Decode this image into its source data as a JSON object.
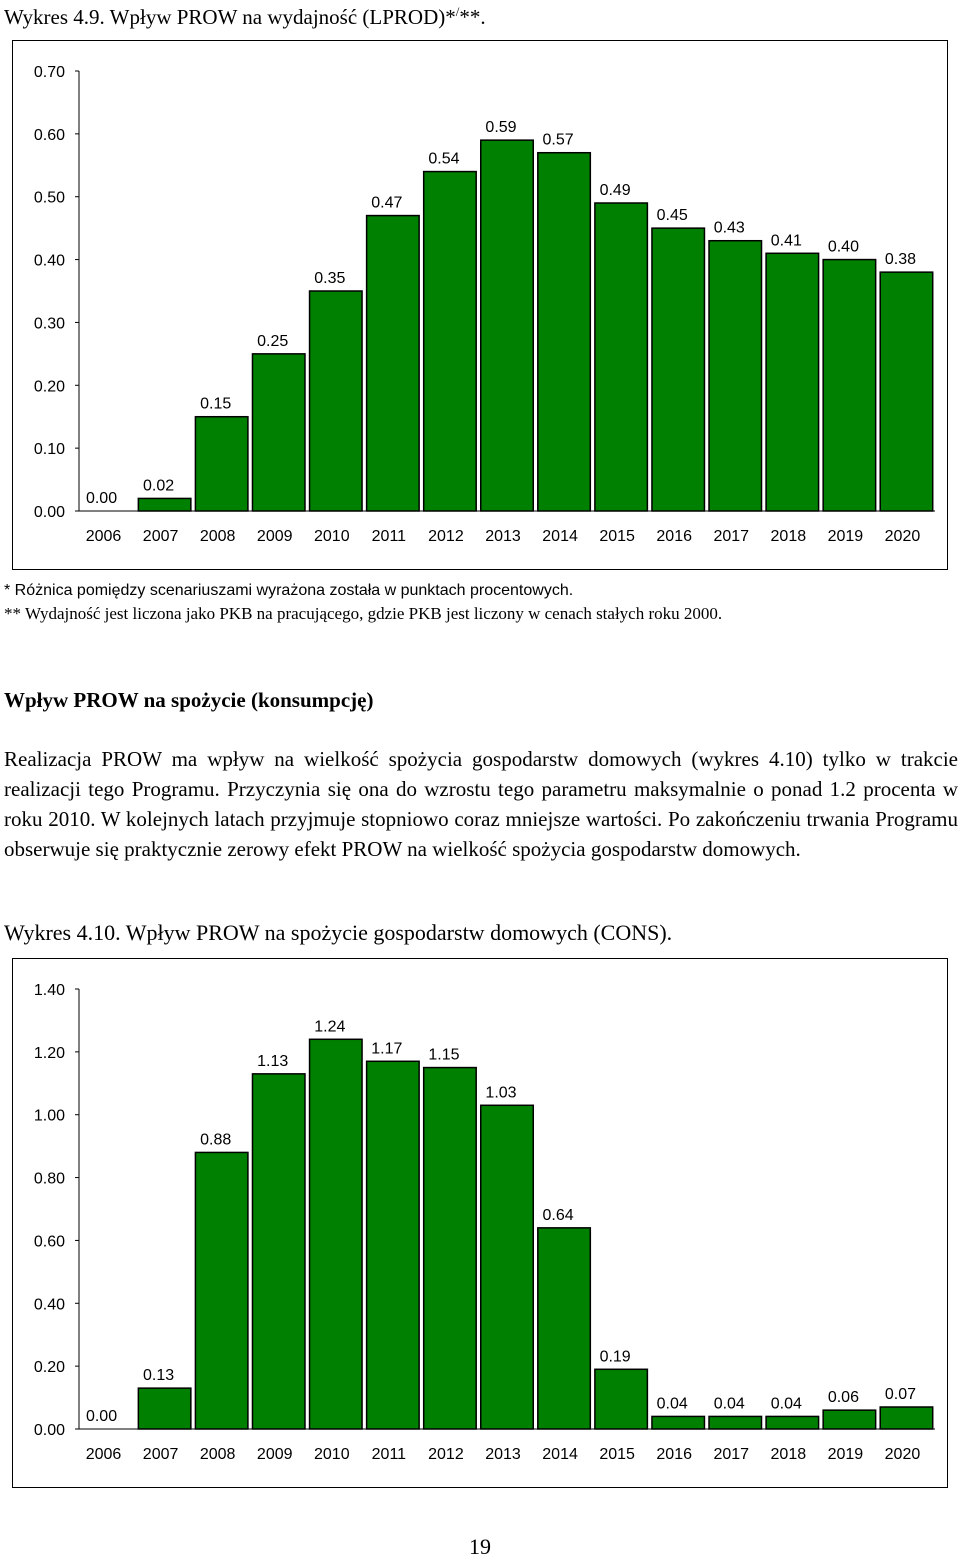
{
  "figure1": {
    "caption": "Wykres 4.9. Wpływ PROW na wydajność (LPROD)*",
    "caption_sup": "/",
    "caption_end": "**."
  },
  "chart_data": [
    {
      "type": "bar",
      "categories": [
        "2006",
        "2007",
        "2008",
        "2009",
        "2010",
        "2011",
        "2012",
        "2013",
        "2014",
        "2015",
        "2016",
        "2017",
        "2018",
        "2019",
        "2020"
      ],
      "values": [
        0.0,
        0.02,
        0.15,
        0.25,
        0.35,
        0.47,
        0.54,
        0.59,
        0.57,
        0.49,
        0.45,
        0.43,
        0.41,
        0.4,
        0.38
      ],
      "value_labels": [
        "0.00",
        "0.02",
        "0.15",
        "0.25",
        "0.35",
        "0.47",
        "0.54",
        "0.59",
        "0.57",
        "0.49",
        "0.45",
        "0.43",
        "0.41",
        "0.40",
        "0.38"
      ],
      "y_ticks": [
        "0.00",
        "0.10",
        "0.20",
        "0.30",
        "0.40",
        "0.50",
        "0.60",
        "0.70"
      ],
      "ylim": [
        0,
        0.7
      ],
      "grid": false,
      "bar_color": "#008000"
    },
    {
      "type": "bar",
      "categories": [
        "2006",
        "2007",
        "2008",
        "2009",
        "2010",
        "2011",
        "2012",
        "2013",
        "2014",
        "2015",
        "2016",
        "2017",
        "2018",
        "2019",
        "2020"
      ],
      "values": [
        0.0,
        0.13,
        0.88,
        1.13,
        1.24,
        1.17,
        1.15,
        1.03,
        0.64,
        0.19,
        0.04,
        0.04,
        0.04,
        0.06,
        0.07
      ],
      "value_labels": [
        "0.00",
        "0.13",
        "0.88",
        "1.13",
        "1.24",
        "1.17",
        "1.15",
        "1.03",
        "0.64",
        "0.19",
        "0.04",
        "0.04",
        "0.04",
        "0.06",
        "0.07"
      ],
      "y_ticks": [
        "0.00",
        "0.20",
        "0.40",
        "0.60",
        "0.80",
        "1.00",
        "1.20",
        "1.40"
      ],
      "ylim": [
        0,
        1.4
      ],
      "grid": false,
      "bar_color": "#008000"
    }
  ],
  "notes": {
    "note1": "* Różnica pomiędzy scenariuszami wyrażona została w punktach procentowych.",
    "note2": "** Wydajność jest liczona jako PKB na pracującego, gdzie PKB jest liczony w cenach stałych roku 2000."
  },
  "section": {
    "heading": "Wpływ PROW na spożycie (konsumpcję)",
    "paragraph": "Realizacja PROW ma wpływ na wielkość spożycia gospodarstw domowych (wykres 4.10) tylko w trakcie realizacji tego Programu. Przyczynia się ona do wzrostu tego parametru maksymalnie o ponad 1.2 procenta w roku 2010. W kolejnych latach przyjmuje stopniowo coraz mniejsze wartości. Po zakończeniu trwania Programu obserwuje się praktycznie zerowy efekt PROW na wielkość spożycia gospodarstw domowych."
  },
  "figure2": {
    "caption": "Wykres 4.10. Wpływ PROW na spożycie gospodarstw domowych (CONS)."
  },
  "page_number": "19"
}
